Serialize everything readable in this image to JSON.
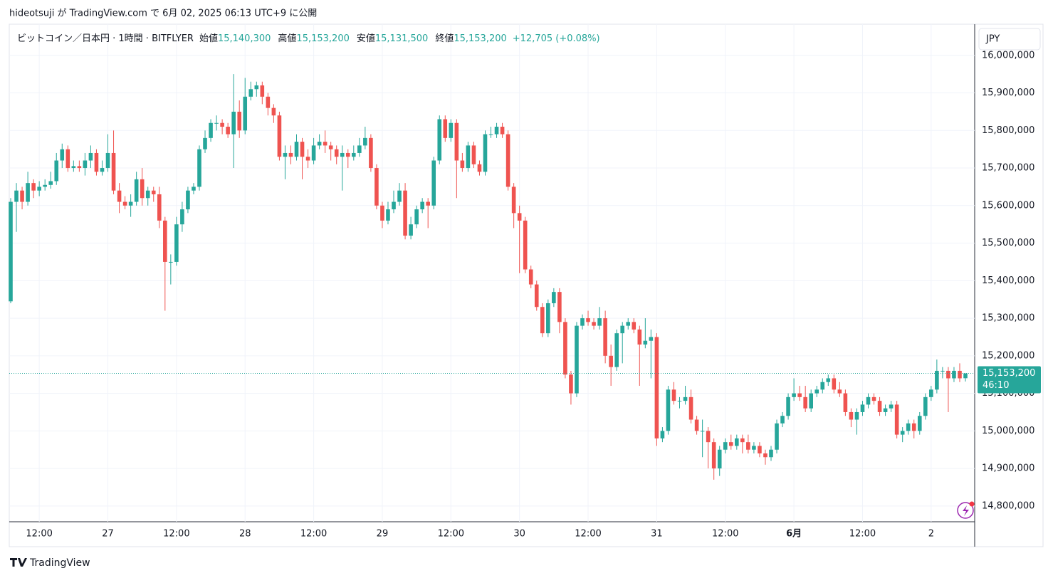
{
  "header": {
    "text": "hideotsuji が TradingView.com で 6月 02, 2025 06:13 UTC+9 に公開"
  },
  "legend": {
    "symbol": "ビットコイン／日本円 · 1時間 · BITFLYER",
    "items": [
      {
        "label": "始値",
        "value": "15,140,300"
      },
      {
        "label": "高値",
        "value": "15,153,200"
      },
      {
        "label": "安値",
        "value": "15,131,500"
      },
      {
        "label": "終値",
        "value": "15,153,200"
      }
    ],
    "change": "+12,705 (+0.08%)"
  },
  "currency": "JPY",
  "last_price": {
    "value": 15153200,
    "label": "15,153,200",
    "countdown": "46:10"
  },
  "footer": "TradingView",
  "chart_data": {
    "type": "candlestick",
    "up_color": "#26a69a",
    "down_color": "#ef5350",
    "ylim": [
      14758000,
      16083000
    ],
    "yticks": [
      {
        "value": 14800000,
        "label": "14,800,000"
      },
      {
        "value": 14900000,
        "label": "14,900,000"
      },
      {
        "value": 15000000,
        "label": "15,000,000"
      },
      {
        "value": 15100000,
        "label": "15,100,000"
      },
      {
        "value": 15200000,
        "label": "15,200,000"
      },
      {
        "value": 15300000,
        "label": "15,300,000"
      },
      {
        "value": 15400000,
        "label": "15,400,000"
      },
      {
        "value": 15500000,
        "label": "15,500,000"
      },
      {
        "value": 15600000,
        "label": "15,600,000"
      },
      {
        "value": 15700000,
        "label": "15,700,000"
      },
      {
        "value": 15800000,
        "label": "15,800,000"
      },
      {
        "value": 15900000,
        "label": "15,900,000"
      },
      {
        "value": 16000000,
        "label": "16,000,000"
      }
    ],
    "xticks": [
      {
        "value": 5,
        "label": "12:00"
      },
      {
        "value": 17,
        "label": "27"
      },
      {
        "value": 29,
        "label": "12:00"
      },
      {
        "value": 41,
        "label": "28"
      },
      {
        "value": 53,
        "label": "12:00"
      },
      {
        "value": 65,
        "label": "29"
      },
      {
        "value": 77,
        "label": "12:00"
      },
      {
        "value": 89,
        "label": "30"
      },
      {
        "value": 101,
        "label": "12:00"
      },
      {
        "value": 113,
        "label": "31"
      },
      {
        "value": 125,
        "label": "12:00"
      },
      {
        "value": 137,
        "label": "6月"
      },
      {
        "value": 149,
        "label": "12:00"
      },
      {
        "value": 161,
        "label": "2"
      }
    ],
    "grid": true,
    "candles": [
      [
        15345000,
        15620000,
        15340000,
        15610000
      ],
      [
        15610000,
        15660000,
        15530000,
        15640000
      ],
      [
        15640000,
        15650000,
        15590000,
        15610000
      ],
      [
        15610000,
        15690000,
        15600000,
        15660000
      ],
      [
        15660000,
        15670000,
        15620000,
        15640000
      ],
      [
        15640000,
        15665000,
        15625000,
        15650000
      ],
      [
        15650000,
        15670000,
        15640000,
        15655000
      ],
      [
        15655000,
        15690000,
        15645000,
        15665000
      ],
      [
        15665000,
        15740000,
        15655000,
        15720000
      ],
      [
        15720000,
        15765000,
        15700000,
        15750000
      ],
      [
        15750000,
        15760000,
        15690000,
        15700000
      ],
      [
        15700000,
        15720000,
        15690000,
        15705000
      ],
      [
        15705000,
        15720000,
        15690000,
        15700000
      ],
      [
        15700000,
        15740000,
        15680000,
        15720000
      ],
      [
        15720000,
        15760000,
        15700000,
        15740000
      ],
      [
        15740000,
        15750000,
        15680000,
        15690000
      ],
      [
        15690000,
        15720000,
        15680000,
        15700000
      ],
      [
        15700000,
        15790000,
        15690000,
        15740000
      ],
      [
        15740000,
        15800000,
        15630000,
        15640000
      ],
      [
        15640000,
        15660000,
        15580000,
        15610000
      ],
      [
        15610000,
        15625000,
        15590000,
        15600000
      ],
      [
        15600000,
        15630000,
        15570000,
        15610000
      ],
      [
        15610000,
        15690000,
        15600000,
        15670000
      ],
      [
        15670000,
        15700000,
        15600000,
        15620000
      ],
      [
        15620000,
        15650000,
        15600000,
        15640000
      ],
      [
        15640000,
        15650000,
        15610000,
        15630000
      ],
      [
        15630000,
        15650000,
        15540000,
        15560000
      ],
      [
        15560000,
        15570000,
        15320000,
        15450000
      ],
      [
        15450000,
        15470000,
        15390000,
        15450000
      ],
      [
        15450000,
        15570000,
        15440000,
        15550000
      ],
      [
        15550000,
        15610000,
        15530000,
        15590000
      ],
      [
        15590000,
        15650000,
        15580000,
        15640000
      ],
      [
        15640000,
        15660000,
        15630000,
        15650000
      ],
      [
        15650000,
        15760000,
        15640000,
        15750000
      ],
      [
        15750000,
        15800000,
        15740000,
        15780000
      ],
      [
        15780000,
        15830000,
        15770000,
        15820000
      ],
      [
        15820000,
        15840000,
        15800000,
        15820000
      ],
      [
        15820000,
        15830000,
        15790000,
        15810000
      ],
      [
        15810000,
        15820000,
        15780000,
        15790000
      ],
      [
        15790000,
        15950000,
        15700000,
        15850000
      ],
      [
        15850000,
        15880000,
        15780000,
        15800000
      ],
      [
        15800000,
        15940000,
        15790000,
        15890000
      ],
      [
        15890000,
        15930000,
        15880000,
        15910000
      ],
      [
        15910000,
        15930000,
        15890000,
        15920000
      ],
      [
        15920000,
        15930000,
        15870000,
        15890000
      ],
      [
        15890000,
        15900000,
        15840000,
        15860000
      ],
      [
        15860000,
        15870000,
        15820000,
        15840000
      ],
      [
        15840000,
        15850000,
        15720000,
        15730000
      ],
      [
        15730000,
        15760000,
        15670000,
        15740000
      ],
      [
        15740000,
        15760000,
        15710000,
        15730000
      ],
      [
        15730000,
        15790000,
        15720000,
        15770000
      ],
      [
        15770000,
        15780000,
        15670000,
        15730000
      ],
      [
        15730000,
        15750000,
        15700000,
        15720000
      ],
      [
        15720000,
        15780000,
        15710000,
        15760000
      ],
      [
        15760000,
        15790000,
        15750000,
        15770000
      ],
      [
        15770000,
        15800000,
        15740000,
        15760000
      ],
      [
        15760000,
        15770000,
        15720000,
        15750000
      ],
      [
        15750000,
        15760000,
        15710000,
        15730000
      ],
      [
        15730000,
        15760000,
        15640000,
        15740000
      ],
      [
        15740000,
        15750000,
        15700000,
        15730000
      ],
      [
        15730000,
        15760000,
        15720000,
        15740000
      ],
      [
        15740000,
        15780000,
        15730000,
        15760000
      ],
      [
        15760000,
        15810000,
        15750000,
        15780000
      ],
      [
        15780000,
        15790000,
        15690000,
        15700000
      ],
      [
        15700000,
        15710000,
        15590000,
        15600000
      ],
      [
        15600000,
        15610000,
        15540000,
        15560000
      ],
      [
        15560000,
        15610000,
        15550000,
        15590000
      ],
      [
        15590000,
        15640000,
        15580000,
        15610000
      ],
      [
        15610000,
        15660000,
        15600000,
        15640000
      ],
      [
        15640000,
        15660000,
        15510000,
        15520000
      ],
      [
        15520000,
        15570000,
        15510000,
        15550000
      ],
      [
        15550000,
        15600000,
        15540000,
        15590000
      ],
      [
        15590000,
        15620000,
        15580000,
        15610000
      ],
      [
        15610000,
        15620000,
        15540000,
        15600000
      ],
      [
        15600000,
        15730000,
        15590000,
        15720000
      ],
      [
        15720000,
        15840000,
        15710000,
        15830000
      ],
      [
        15830000,
        15840000,
        15770000,
        15780000
      ],
      [
        15780000,
        15830000,
        15770000,
        15820000
      ],
      [
        15820000,
        15830000,
        15620000,
        15720000
      ],
      [
        15720000,
        15740000,
        15690000,
        15700000
      ],
      [
        15700000,
        15770000,
        15690000,
        15760000
      ],
      [
        15760000,
        15770000,
        15700000,
        15710000
      ],
      [
        15710000,
        15720000,
        15680000,
        15690000
      ],
      [
        15690000,
        15800000,
        15680000,
        15790000
      ],
      [
        15790000,
        15810000,
        15780000,
        15790000
      ],
      [
        15790000,
        15820000,
        15780000,
        15810000
      ],
      [
        15810000,
        15820000,
        15780000,
        15790000
      ],
      [
        15790000,
        15800000,
        15640000,
        15650000
      ],
      [
        15650000,
        15660000,
        15540000,
        15580000
      ],
      [
        15580000,
        15600000,
        15420000,
        15560000
      ],
      [
        15560000,
        15570000,
        15420000,
        15430000
      ],
      [
        15430000,
        15440000,
        15380000,
        15390000
      ],
      [
        15390000,
        15400000,
        15320000,
        15330000
      ],
      [
        15330000,
        15340000,
        15250000,
        15260000
      ],
      [
        15260000,
        15350000,
        15250000,
        15340000
      ],
      [
        15340000,
        15380000,
        15330000,
        15370000
      ],
      [
        15370000,
        15380000,
        15260000,
        15290000
      ],
      [
        15290000,
        15300000,
        15140000,
        15150000
      ],
      [
        15150000,
        15160000,
        15070000,
        15100000
      ],
      [
        15100000,
        15290000,
        15090000,
        15280000
      ],
      [
        15280000,
        15310000,
        15270000,
        15300000
      ],
      [
        15300000,
        15320000,
        15280000,
        15290000
      ],
      [
        15290000,
        15300000,
        15270000,
        15280000
      ],
      [
        15280000,
        15330000,
        15270000,
        15300000
      ],
      [
        15300000,
        15320000,
        15180000,
        15200000
      ],
      [
        15200000,
        15230000,
        15120000,
        15170000
      ],
      [
        15170000,
        15270000,
        15160000,
        15260000
      ],
      [
        15260000,
        15290000,
        15180000,
        15280000
      ],
      [
        15280000,
        15300000,
        15270000,
        15290000
      ],
      [
        15290000,
        15300000,
        15260000,
        15270000
      ],
      [
        15270000,
        15280000,
        15120000,
        15230000
      ],
      [
        15230000,
        15300000,
        15220000,
        15240000
      ],
      [
        15240000,
        15270000,
        15140000,
        15250000
      ],
      [
        15250000,
        15260000,
        14960000,
        14980000
      ],
      [
        14980000,
        15010000,
        14970000,
        15000000
      ],
      [
        15000000,
        15120000,
        14990000,
        15110000
      ],
      [
        15110000,
        15130000,
        15070000,
        15080000
      ],
      [
        15080000,
        15090000,
        15060000,
        15080000
      ],
      [
        15080000,
        15120000,
        15070000,
        15090000
      ],
      [
        15090000,
        15110000,
        15020000,
        15030000
      ],
      [
        15030000,
        15040000,
        14990000,
        15000000
      ],
      [
        15000000,
        15030000,
        14930000,
        15000000
      ],
      [
        15000000,
        15010000,
        14900000,
        14970000
      ],
      [
        14970000,
        14980000,
        14870000,
        14900000
      ],
      [
        14900000,
        14960000,
        14880000,
        14950000
      ],
      [
        14950000,
        14980000,
        14940000,
        14970000
      ],
      [
        14970000,
        14990000,
        14950000,
        14960000
      ],
      [
        14960000,
        14990000,
        14950000,
        14980000
      ],
      [
        14980000,
        14990000,
        14940000,
        14970000
      ],
      [
        14970000,
        14990000,
        14940000,
        14950000
      ],
      [
        14950000,
        14970000,
        14940000,
        14960000
      ],
      [
        14960000,
        14970000,
        14930000,
        14940000
      ],
      [
        14940000,
        14950000,
        14910000,
        14930000
      ],
      [
        14930000,
        14960000,
        14920000,
        14950000
      ],
      [
        14950000,
        15030000,
        14940000,
        15020000
      ],
      [
        15020000,
        15050000,
        15010000,
        15040000
      ],
      [
        15040000,
        15100000,
        15030000,
        15090000
      ],
      [
        15090000,
        15140000,
        15080000,
        15100000
      ],
      [
        15100000,
        15120000,
        15080000,
        15090000
      ],
      [
        15090000,
        15120000,
        15050000,
        15060000
      ],
      [
        15060000,
        15110000,
        15050000,
        15100000
      ],
      [
        15100000,
        15120000,
        15090000,
        15110000
      ],
      [
        15110000,
        15140000,
        15100000,
        15130000
      ],
      [
        15130000,
        15150000,
        15120000,
        15140000
      ],
      [
        15140000,
        15150000,
        15100000,
        15110000
      ],
      [
        15110000,
        15130000,
        15090000,
        15100000
      ],
      [
        15100000,
        15110000,
        15040000,
        15050000
      ],
      [
        15050000,
        15060000,
        15010000,
        15030000
      ],
      [
        15030000,
        15060000,
        14990000,
        15050000
      ],
      [
        15050000,
        15080000,
        15040000,
        15070000
      ],
      [
        15070000,
        15100000,
        15060000,
        15090000
      ],
      [
        15090000,
        15100000,
        15070000,
        15080000
      ],
      [
        15080000,
        15090000,
        15040000,
        15050000
      ],
      [
        15050000,
        15070000,
        15040000,
        15060000
      ],
      [
        15060000,
        15080000,
        15050000,
        15070000
      ],
      [
        15070000,
        15080000,
        14980000,
        14990000
      ],
      [
        14990000,
        15010000,
        14970000,
        15000000
      ],
      [
        15000000,
        15030000,
        14990000,
        15020000
      ],
      [
        15020000,
        15030000,
        14980000,
        15000000
      ],
      [
        15000000,
        15050000,
        14990000,
        15040000
      ],
      [
        15040000,
        15100000,
        15030000,
        15090000
      ],
      [
        15090000,
        15120000,
        15080000,
        15110000
      ],
      [
        15110000,
        15190000,
        15100000,
        15160000
      ],
      [
        15160000,
        15170000,
        15140000,
        15160000
      ],
      [
        15160000,
        15170000,
        15050000,
        15140000
      ],
      [
        15140000,
        15170000,
        15130000,
        15160000
      ],
      [
        15160000,
        15180000,
        15130000,
        15140000
      ],
      [
        15140300,
        15153200,
        15131500,
        15153200
      ]
    ]
  }
}
